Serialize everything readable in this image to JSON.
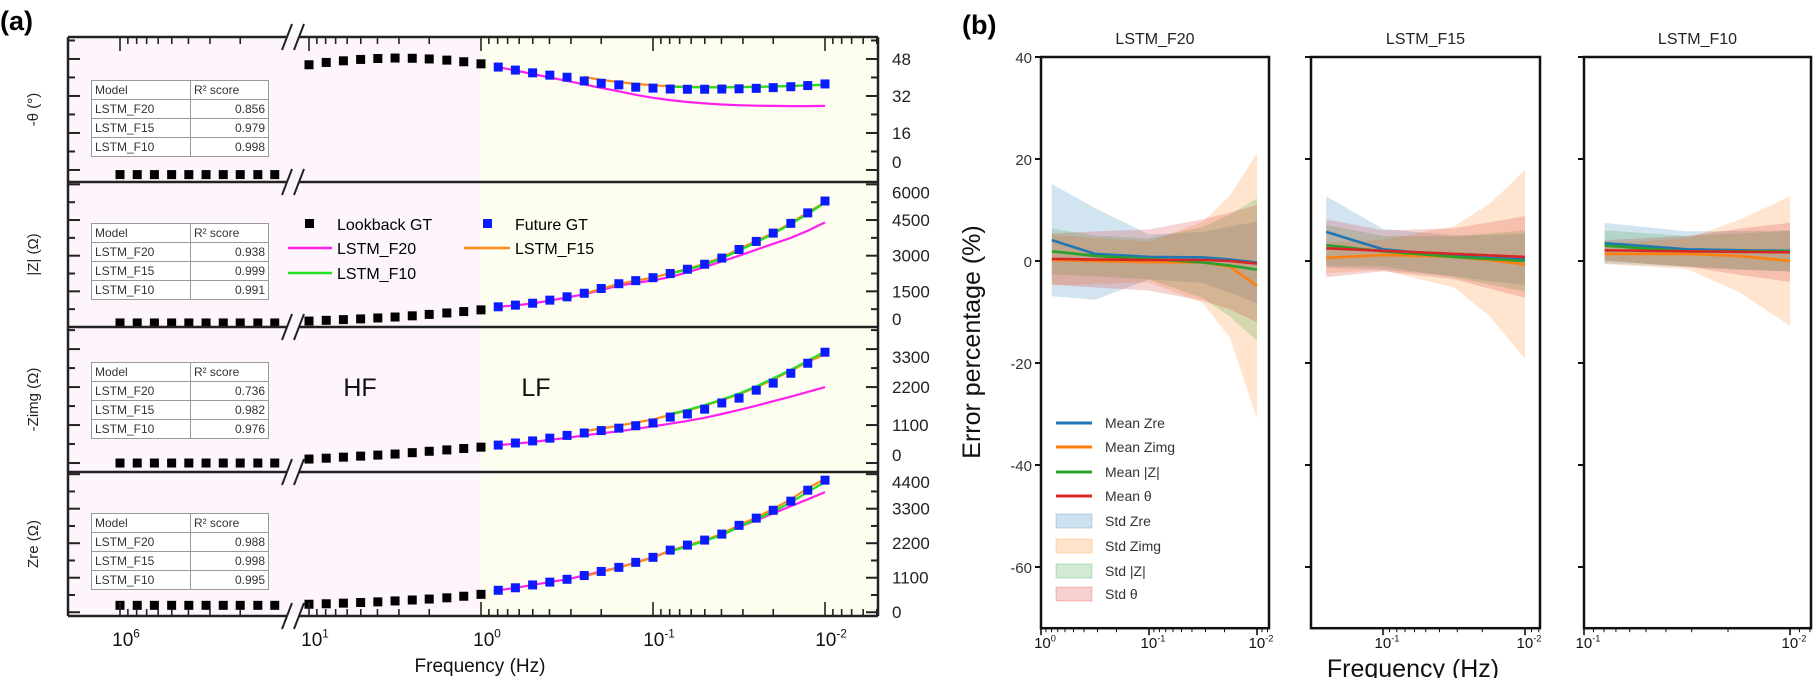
{
  "chart_data": [
    {
      "panel_label": "(a)",
      "type": "scatter+line",
      "xlabel": "Frequency (Hz)",
      "x_scale": "log, reversed, broken axis",
      "x_ticks": [
        {
          "base": "10",
          "exp": "6",
          "value_hz": 1000000
        },
        {
          "base": "10",
          "exp": "1",
          "value_hz": 10
        },
        {
          "base": "10",
          "exp": "0",
          "value_hz": 1
        },
        {
          "base": "10",
          "exp": "-1",
          "value_hz": 0.1
        },
        {
          "base": "10",
          "exp": "-2",
          "value_hz": 0.01
        }
      ],
      "regions": [
        {
          "label": "HF",
          "color": "#fdf4fc"
        },
        {
          "label": "LF",
          "color": "#fefef0"
        }
      ],
      "colors": {
        "lookback": "#000000",
        "future": "#0a1cff",
        "LSTM_F20": "#ff1fee",
        "LSTM_F15": "#ff8a1a",
        "LSTM_F10": "#22e022"
      },
      "legend": {
        "lookback": "Lookback GT",
        "future": "Future GT",
        "f20": "LSTM_F20",
        "f15": "LSTM_F15",
        "f10": "LSTM_F10"
      },
      "lookback_freq_hz": [
        1000000,
        794000,
        631000,
        501000,
        398000,
        316000,
        251000,
        200000,
        158000,
        126000,
        10,
        7.94,
        6.31,
        5.01,
        3.98,
        3.16,
        2.51,
        2.0,
        1.58,
        1.26,
        1.0
      ],
      "future_freq_hz": [
        0.794,
        0.631,
        0.501,
        0.398,
        0.316,
        0.251,
        0.2,
        0.158,
        0.126,
        0.1,
        0.0794,
        0.0631,
        0.0501,
        0.0398,
        0.0316,
        0.0251,
        0.02,
        0.0158,
        0.0126,
        0.01
      ],
      "subplots": [
        {
          "ylabel": "-θ (°)",
          "ylim": [
            -5.2,
            57.5
          ],
          "yticks": [
            0,
            16,
            32,
            48
          ],
          "table": {
            "headers": [
              "Model",
              "R² score"
            ],
            "rows": [
              [
                "LSTM_F20",
                "0.856"
              ],
              [
                "LSTM_F15",
                "0.979"
              ],
              [
                "LSTM_F10",
                "0.998"
              ]
            ]
          },
          "lookback": [
            -2,
            -2,
            -2,
            -2,
            -2,
            -2,
            -2,
            -2,
            -2,
            -2,
            45.5,
            46.5,
            47.2,
            47.8,
            48.2,
            48.4,
            48.3,
            48.0,
            47.5,
            46.8,
            45.9
          ],
          "future": [
            44.5,
            43.2,
            42.0,
            41.0,
            40.1,
            38.5,
            37.5,
            36.8,
            35.8,
            35.4,
            35.0,
            34.9,
            34.9,
            35.0,
            35.1,
            35.3,
            35.6,
            36.0,
            36.5,
            37.2
          ],
          "LSTM_F20": [
            44.5,
            43.0,
            41.5,
            40.0,
            38.5,
            37.0,
            35.5,
            34.0,
            32.5,
            31.2,
            30.2,
            29.4,
            28.8,
            28.3,
            28.0,
            27.8,
            27.7,
            27.6,
            27.6,
            27.7
          ],
          "LSTM_F15": [
            null,
            null,
            null,
            null,
            null,
            40.2,
            39.0,
            38.0,
            37.2,
            36.6,
            36.2,
            36.0,
            35.9,
            35.9,
            35.9,
            36.0,
            36.1,
            36.3,
            36.6,
            36.8
          ],
          "LSTM_F10": [
            null,
            null,
            null,
            null,
            null,
            null,
            null,
            null,
            null,
            null,
            36.0,
            35.8,
            35.7,
            35.7,
            35.8,
            35.9,
            36.1,
            36.3,
            36.6,
            36.9
          ]
        },
        {
          "ylabel": "|Z| (Ω)",
          "ylim": [
            0,
            6100
          ],
          "yticks": [
            0,
            1500,
            3000,
            4500,
            6000
          ],
          "table": {
            "headers": [
              "Model",
              "R² score"
            ],
            "rows": [
              [
                "LSTM_F20",
                "0.938"
              ],
              [
                "LSTM_F15",
                "0.999"
              ],
              [
                "LSTM_F10",
                "0.991"
              ]
            ]
          },
          "lookback": [
            170,
            170,
            170,
            170,
            170,
            170,
            170,
            170,
            170,
            170,
            250,
            280,
            310,
            340,
            380,
            420,
            470,
            530,
            590,
            650,
            720
          ],
          "future": [
            850,
            920,
            1000,
            1130,
            1270,
            1420,
            1620,
            1820,
            1950,
            2075,
            2250,
            2430,
            2640,
            2900,
            3260,
            3600,
            3950,
            4360,
            4800,
            5300
          ],
          "LSTM_F20": [
            850,
            915,
            990,
            1110,
            1240,
            1380,
            1560,
            1740,
            1850,
            1960,
            2100,
            2300,
            2520,
            2760,
            3000,
            3250,
            3500,
            3750,
            4050,
            4400
          ],
          "LSTM_F15": [
            null,
            null,
            null,
            null,
            null,
            1400,
            1610,
            1810,
            1950,
            2080,
            2260,
            2450,
            2660,
            2930,
            3280,
            3620,
            3960,
            4380,
            4820,
            5250
          ],
          "LSTM_F10": [
            null,
            null,
            null,
            null,
            null,
            null,
            null,
            null,
            null,
            null,
            2240,
            2420,
            2620,
            2880,
            3220,
            3560,
            3920,
            4330,
            4760,
            5230
          ]
        },
        {
          "ylabel": "-Zimg (Ω)",
          "ylim": [
            -260,
            3940
          ],
          "yticks": [
            0,
            1100,
            2200,
            3300
          ],
          "table": {
            "headers": [
              "Model",
              "R² score"
            ],
            "rows": [
              [
                "LSTM_F20",
                "0.736"
              ],
              [
                "LSTM_F15",
                "0.982"
              ],
              [
                "LSTM_F10",
                "0.976"
              ]
            ]
          },
          "lookback": [
            0,
            0,
            0,
            0,
            0,
            0,
            0,
            0,
            0,
            0,
            115,
            140,
            170,
            200,
            230,
            260,
            300,
            340,
            380,
            420,
            460
          ],
          "future": [
            520,
            580,
            640,
            720,
            800,
            870,
            940,
            1010,
            1080,
            1160,
            1330,
            1420,
            1560,
            1740,
            1880,
            2110,
            2315,
            2600,
            2890,
            3210
          ],
          "LSTM_F20": [
            520,
            560,
            610,
            670,
            730,
            800,
            860,
            920,
            990,
            1060,
            1140,
            1220,
            1310,
            1420,
            1540,
            1660,
            1790,
            1920,
            2060,
            2200
          ],
          "LSTM_F15": [
            null,
            null,
            null,
            null,
            null,
            920,
            1000,
            1080,
            1170,
            1260,
            1400,
            1520,
            1660,
            1820,
            1990,
            2190,
            2420,
            2670,
            2930,
            3150
          ],
          "LSTM_F10": [
            null,
            null,
            null,
            null,
            null,
            null,
            null,
            null,
            null,
            null,
            1420,
            1540,
            1680,
            1840,
            2010,
            2220,
            2450,
            2700,
            2960,
            3230
          ]
        },
        {
          "ylabel": "Zre (Ω)",
          "ylim": [
            -120,
            4470
          ],
          "yticks": [
            0,
            1100,
            2200,
            3300,
            4400
          ],
          "table": {
            "headers": [
              "Model",
              "R² score"
            ],
            "rows": [
              [
                "LSTM_F20",
                "0.988"
              ],
              [
                "LSTM_F15",
                "0.998"
              ],
              [
                "LSTM_F10",
                "0.995"
              ]
            ]
          },
          "lookback": [
            220,
            220,
            220,
            220,
            220,
            220,
            220,
            220,
            220,
            220,
            255,
            270,
            290,
            310,
            330,
            360,
            390,
            420,
            460,
            510,
            570
          ],
          "future": [
            700,
            780,
            870,
            960,
            1050,
            1170,
            1300,
            1430,
            1590,
            1750,
            1980,
            2140,
            2300,
            2490,
            2770,
            3000,
            3250,
            3540,
            3890,
            4210
          ],
          "LSTM_F20": [
            700,
            780,
            870,
            960,
            1050,
            1170,
            1300,
            1430,
            1590,
            1750,
            1960,
            2120,
            2280,
            2460,
            2720,
            2930,
            3150,
            3380,
            3600,
            3830
          ],
          "LSTM_F15": [
            null,
            null,
            null,
            null,
            null,
            1150,
            1280,
            1420,
            1580,
            1740,
            1960,
            2130,
            2300,
            2500,
            2780,
            3020,
            3290,
            3600,
            3950,
            4250
          ],
          "LSTM_F10": [
            null,
            null,
            null,
            null,
            null,
            null,
            null,
            null,
            null,
            null,
            1940,
            2100,
            2270,
            2460,
            2730,
            2960,
            3210,
            3500,
            3830,
            4150
          ]
        }
      ],
      "annotations": [
        "HF",
        "LF"
      ]
    },
    {
      "panel_label": "(b)",
      "type": "line+area",
      "xlabel": "Frequency (Hz)",
      "ylabel": "Error percentage (%)",
      "ylim": [
        -72,
        40
      ],
      "yticks": [
        40,
        20,
        0,
        -20,
        -40,
        -60
      ],
      "x_scale": "log, reversed",
      "colors": {
        "Zre": "#1f77b4",
        "Zimg": "#ff7f0e",
        "Z": "#2ca02c",
        "theta": "#d62728"
      },
      "legend": [
        "Mean Zre",
        "Mean Zimg",
        "Mean |Z|",
        "Mean θ",
        "Std Zre",
        "Std Zimg",
        "Std |Z|",
        "Std θ"
      ],
      "legend_placement": "lower-left of first subplot",
      "subplots": [
        {
          "title": "LSTM_F20",
          "x_ticks": [
            {
              "base": "10",
              "exp": "0"
            },
            {
              "base": "10",
              "exp": "-1"
            },
            {
              "base": "10",
              "exp": "-2"
            }
          ],
          "freq_hz": [
            0.794,
            0.316,
            0.1,
            0.0316,
            0.0178,
            0.01
          ],
          "mean": {
            "Zre": [
              4.1,
              1.4,
              0.8,
              0.7,
              0.3,
              -0.3
            ],
            "Zimg": [
              0.2,
              0.0,
              -0.2,
              -0.3,
              -1.1,
              -4.9
            ],
            "Z": [
              1.9,
              1.0,
              0.4,
              -0.3,
              -0.9,
              -1.7
            ],
            "theta": [
              0.4,
              0.3,
              0.2,
              0.2,
              0.0,
              -0.5
            ]
          },
          "std": {
            "Zre": [
              11,
              9,
              4.4,
              5,
              6.5,
              8
            ],
            "Zimg": [
              5,
              4.5,
              4,
              8,
              14,
              26
            ],
            "Z": [
              4.5,
              4,
              4,
              7,
              10,
              14
            ],
            "theta": [
              5,
              5.5,
              6,
              8,
              9.5,
              11.5
            ]
          }
        },
        {
          "title": "LSTM_F15",
          "x_ticks": [
            {
              "base": "10",
              "exp": "-1"
            },
            {
              "base": "10",
              "exp": "-2"
            }
          ],
          "freq_hz": [
            0.251,
            0.1,
            0.0316,
            0.0178,
            0.01
          ],
          "mean": {
            "Zre": [
              5.7,
              2.3,
              1.0,
              0.6,
              0.3
            ],
            "Zimg": [
              0.6,
              1.2,
              0.8,
              0.2,
              -0.7
            ],
            "Z": [
              3.1,
              1.9,
              0.8,
              0.4,
              0.0
            ],
            "theta": [
              2.5,
              2.0,
              1.4,
              1.1,
              0.8
            ]
          },
          "std": {
            "Zre": [
              7,
              4,
              4,
              4.5,
              5
            ],
            "Zimg": [
              3,
              3,
              6,
              11,
              18.5
            ],
            "Z": [
              4,
              3,
              4,
              5,
              6
            ],
            "theta": [
              5.7,
              4,
              5,
              6.5,
              8
            ]
          }
        },
        {
          "title": "LSTM_F10",
          "x_ticks": [
            {
              "base": "10",
              "exp": "-1"
            },
            {
              "base": "10",
              "exp": "-2"
            }
          ],
          "freq_hz": [
            0.0794,
            0.0316,
            0.0178,
            0.01
          ],
          "mean": {
            "Zre": [
              3.5,
              2.3,
              2.1,
              2.0
            ],
            "Zimg": [
              1.4,
              1.4,
              1.0,
              0.0
            ],
            "Z": [
              3.0,
              1.9,
              1.9,
              1.9
            ],
            "theta": [
              2.1,
              1.9,
              1.8,
              1.7
            ]
          },
          "std": {
            "Zre": [
              4,
              3.5,
              3.8,
              4
            ],
            "Zimg": [
              2,
              3,
              7,
              12.7
            ],
            "Z": [
              3,
              3,
              3.5,
              4
            ],
            "theta": [
              2,
              3,
              4.5,
              5.8
            ]
          }
        }
      ]
    }
  ]
}
